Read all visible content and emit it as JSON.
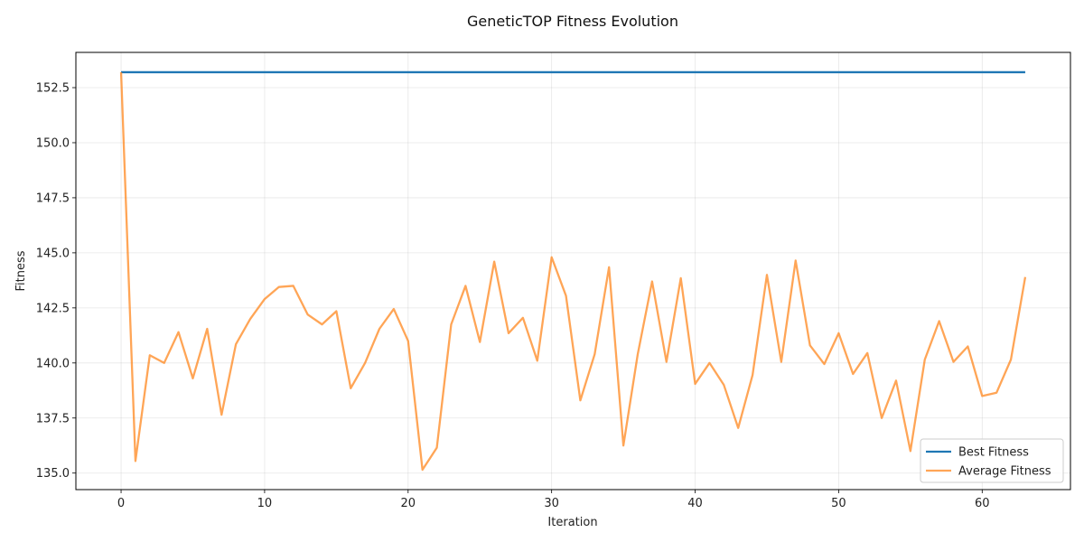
{
  "chart_data": {
    "type": "line",
    "title": "GeneticTOP Fitness Evolution",
    "xlabel": "Iteration",
    "ylabel": "Fitness",
    "xlim": [
      -3.15,
      66.15
    ],
    "ylim": [
      134.25,
      154.1
    ],
    "x_ticks": [
      0,
      10,
      20,
      30,
      40,
      50,
      60
    ],
    "y_ticks": [
      135.0,
      137.5,
      140.0,
      142.5,
      145.0,
      147.5,
      150.0,
      152.5
    ],
    "grid": true,
    "legend_position": "bottom-right",
    "x": [
      0,
      1,
      2,
      3,
      4,
      5,
      6,
      7,
      8,
      9,
      10,
      11,
      12,
      13,
      14,
      15,
      16,
      17,
      18,
      19,
      20,
      21,
      22,
      23,
      24,
      25,
      26,
      27,
      28,
      29,
      30,
      31,
      32,
      33,
      34,
      35,
      36,
      37,
      38,
      39,
      40,
      41,
      42,
      43,
      44,
      45,
      46,
      47,
      48,
      49,
      50,
      51,
      52,
      53,
      54,
      55,
      56,
      57,
      58,
      59,
      60,
      61,
      62,
      63
    ],
    "series": [
      {
        "name": "Best Fitness",
        "color": "#1f77b4",
        "values": [
          153.2,
          153.2,
          153.2,
          153.2,
          153.2,
          153.2,
          153.2,
          153.2,
          153.2,
          153.2,
          153.2,
          153.2,
          153.2,
          153.2,
          153.2,
          153.2,
          153.2,
          153.2,
          153.2,
          153.2,
          153.2,
          153.2,
          153.2,
          153.2,
          153.2,
          153.2,
          153.2,
          153.2,
          153.2,
          153.2,
          153.2,
          153.2,
          153.2,
          153.2,
          153.2,
          153.2,
          153.2,
          153.2,
          153.2,
          153.2,
          153.2,
          153.2,
          153.2,
          153.2,
          153.2,
          153.2,
          153.2,
          153.2,
          153.2,
          153.2,
          153.2,
          153.2,
          153.2,
          153.2,
          153.2,
          153.2,
          153.2,
          153.2,
          153.2,
          153.2,
          153.2,
          153.2,
          153.2,
          153.2
        ]
      },
      {
        "name": "Average Fitness",
        "color": "#ff7f0e",
        "values": [
          153.2,
          135.55,
          140.35,
          140.0,
          141.4,
          139.3,
          141.55,
          137.65,
          140.85,
          142.0,
          142.9,
          143.45,
          143.5,
          142.2,
          141.75,
          142.35,
          138.85,
          140.0,
          141.55,
          142.45,
          141.0,
          135.15,
          136.15,
          141.75,
          143.5,
          140.95,
          144.6,
          141.35,
          142.05,
          140.1,
          144.8,
          143.05,
          138.3,
          140.4,
          144.35,
          136.25,
          140.4,
          143.7,
          140.05,
          143.85,
          139.05,
          140.0,
          139.0,
          137.05,
          139.45,
          144.0,
          140.05,
          144.65,
          140.8,
          139.95,
          141.35,
          139.5,
          140.45,
          137.5,
          139.2,
          136.0,
          140.15,
          141.9,
          140.05,
          140.75,
          138.5,
          138.65,
          140.15,
          143.9
        ]
      }
    ]
  }
}
